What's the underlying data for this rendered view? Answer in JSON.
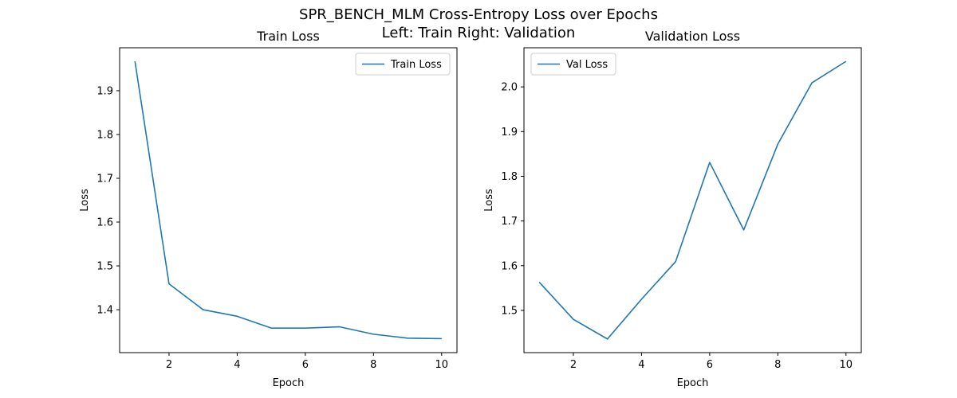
{
  "figure": {
    "title_line1": "SPR_BENCH_MLM Cross-Entropy Loss over Epochs",
    "title_line2": "Left: Train  Right: Validation"
  },
  "chart_data": [
    {
      "type": "line",
      "title": "Train Loss",
      "xlabel": "Epoch",
      "ylabel": "Loss",
      "xlim": [
        0.55,
        10.45
      ],
      "ylim": [
        1.302,
        1.998
      ],
      "xticks": [
        2,
        4,
        6,
        8,
        10
      ],
      "yticks": [
        1.4,
        1.5,
        1.6,
        1.7,
        1.8,
        1.9
      ],
      "grid": false,
      "legend": "upper right",
      "color": "#1f77b4",
      "series": [
        {
          "name": "Train Loss",
          "x": [
            1,
            2,
            3,
            4,
            5,
            6,
            7,
            8,
            9,
            10
          ],
          "values": [
            1.967,
            1.459,
            1.4,
            1.385,
            1.358,
            1.358,
            1.361,
            1.344,
            1.335,
            1.334
          ]
        }
      ]
    },
    {
      "type": "line",
      "title": "Validation Loss",
      "xlabel": "Epoch",
      "ylabel": "Loss",
      "xlim": [
        0.55,
        10.45
      ],
      "ylim": [
        1.4055,
        2.0875
      ],
      "xticks": [
        2,
        4,
        6,
        8,
        10
      ],
      "yticks": [
        1.5,
        1.6,
        1.7,
        1.8,
        1.9,
        2.0
      ],
      "grid": false,
      "legend": "upper left",
      "color": "#1f77b4",
      "series": [
        {
          "name": "Val Loss",
          "x": [
            1,
            2,
            3,
            4,
            5,
            6,
            7,
            8,
            9,
            10
          ],
          "values": [
            1.563,
            1.48,
            1.436,
            1.525,
            1.609,
            1.831,
            1.68,
            1.872,
            2.009,
            2.057
          ]
        }
      ]
    }
  ]
}
